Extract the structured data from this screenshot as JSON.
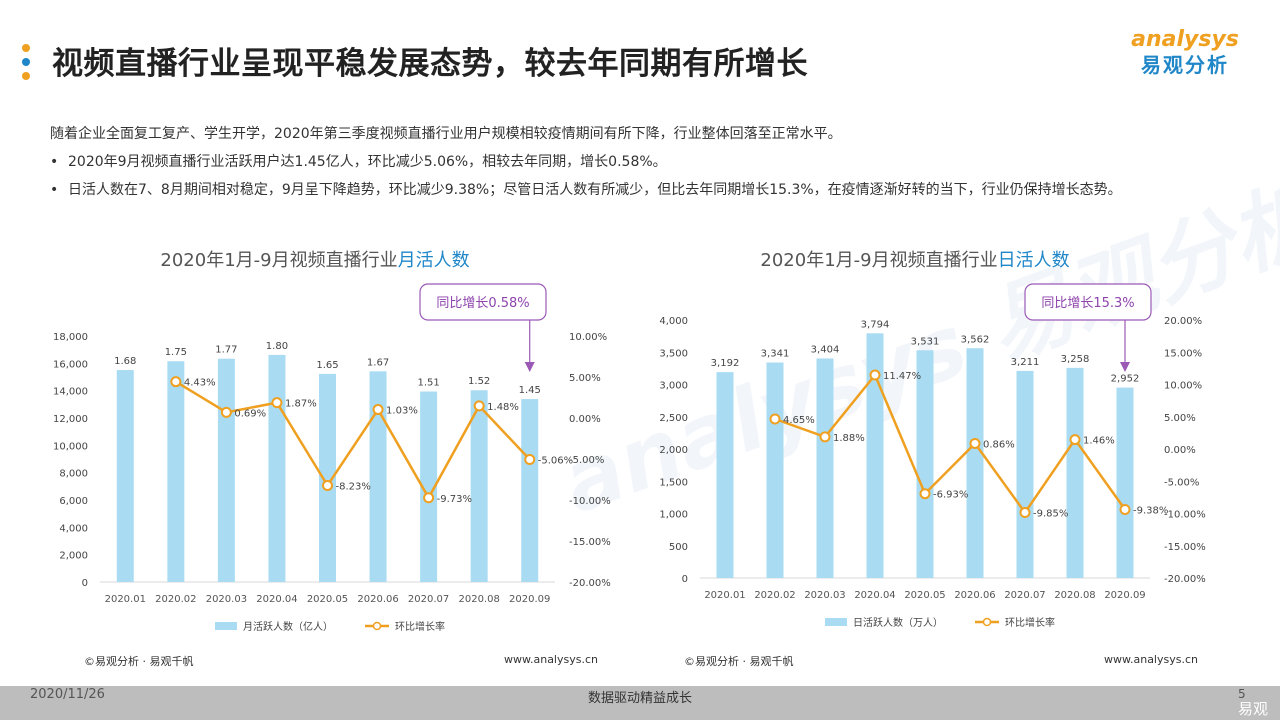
{
  "header": {
    "title": "视频直播行业呈现平稳发展态势，较去年同期有所增长",
    "logo_en": "analysys",
    "logo_cn": "易观分析",
    "dot_colors": [
      "#f0a020",
      "#1f86c8",
      "#f0a020"
    ]
  },
  "body": {
    "intro": "随着企业全面复工复产、学生开学，2020年第三季度视频直播行业用户规模相较疫情期间有所下降，行业整体回落至正常水平。",
    "bullet_symbol": "•",
    "bullets": [
      "2020年9月视频直播行业活跃用户达1.45亿人，环比减少5.06%，相较去年同期，增长0.58%。",
      "日活人数在7、8月期间相对稳定，9月呈下降趋势，环比减少9.38%；尽管日活人数有所减少，但比去年同期增长15.3%，在疫情逐渐好转的当下，行业仍保持增长态势。"
    ]
  },
  "watermark": "analysys 易观分析",
  "chart_data": [
    {
      "type": "bar",
      "title_prefix": "2020年1月-9月视频直播行业",
      "title_highlight": "月活人数",
      "categories": [
        "2020.01",
        "2020.02",
        "2020.03",
        "2020.04",
        "2020.05",
        "2020.06",
        "2020.07",
        "2020.08",
        "2020.09"
      ],
      "series": [
        {
          "name": "月活跃人数（亿人）",
          "kind": "bar",
          "axis": "left",
          "values": [
            1.68,
            1.75,
            1.77,
            1.8,
            1.65,
            1.67,
            1.51,
            1.52,
            1.45
          ],
          "labels": [
            "1.68",
            "1.75",
            "1.77",
            "1.80",
            "1.65",
            "1.67",
            "1.51",
            "1.52",
            "1.45"
          ],
          "color": "#a9dcf3"
        },
        {
          "name": "环比增长率",
          "kind": "line",
          "axis": "right",
          "values": [
            null,
            4.43,
            0.69,
            1.87,
            -8.23,
            1.03,
            -9.73,
            1.48,
            -5.06
          ],
          "labels": [
            "",
            "4.43%",
            "0.69%",
            "1.87%",
            "-8.23%",
            "1.03%",
            "-9.73%",
            "1.48%",
            "-5.06%"
          ],
          "color": "#f0a020"
        }
      ],
      "left_axis": {
        "ticks": [
          "0",
          "2,000",
          "4,000",
          "6,000",
          "8,000",
          "10,000",
          "12,000",
          "14,000",
          "16,000",
          "18,000"
        ]
      },
      "right_axis": {
        "ticks": [
          "-20.00%",
          "-15.00%",
          "-10.00%",
          "-5.00%",
          "0.00%",
          "5.00%",
          "10.00%"
        ],
        "ylim": [
          -20,
          10
        ]
      },
      "callout": "同比增长0.58%",
      "source": "©易观分析 · 易观千帆",
      "site": "www.analysys.cn"
    },
    {
      "type": "bar",
      "title_prefix": "2020年1月-9月视频直播行业",
      "title_highlight": "日活人数",
      "categories": [
        "2020.01",
        "2020.02",
        "2020.03",
        "2020.04",
        "2020.05",
        "2020.06",
        "2020.07",
        "2020.08",
        "2020.09"
      ],
      "series": [
        {
          "name": "日活跃人数（万人）",
          "kind": "bar",
          "axis": "left",
          "values": [
            3192,
            3341,
            3404,
            3794,
            3531,
            3562,
            3211,
            3258,
            2952
          ],
          "labels": [
            "3,192",
            "3,341",
            "3,404",
            "3,794",
            "3,531",
            "3,562",
            "3,211",
            "3,258",
            "2,952"
          ],
          "color": "#a9dcf3"
        },
        {
          "name": "环比增长率",
          "kind": "line",
          "axis": "right",
          "values": [
            null,
            4.65,
            1.88,
            11.47,
            -6.93,
            0.86,
            -9.85,
            1.46,
            -9.38
          ],
          "labels": [
            "",
            "4.65%",
            "1.88%",
            "11.47%",
            "-6.93%",
            "0.86%",
            "-9.85%",
            "1.46%",
            "-9.38%"
          ],
          "color": "#f0a020"
        }
      ],
      "left_axis": {
        "ticks": [
          "0",
          "500",
          "1,000",
          "1,500",
          "2,000",
          "2,500",
          "3,000",
          "3,500",
          "4,000"
        ],
        "ylim": [
          0,
          4000
        ]
      },
      "right_axis": {
        "ticks": [
          "-20.00%",
          "-15.00%",
          "-10.00%",
          "-5.00%",
          "0.00%",
          "5.00%",
          "10.00%",
          "15.00%",
          "20.00%"
        ],
        "ylim": [
          -20,
          20
        ]
      },
      "callout": "同比增长15.3%",
      "source": "©易观分析 · 易观千帆",
      "site": "www.analysys.cn"
    }
  ],
  "footer": {
    "date": "2020/11/26",
    "slogan": "数据驱动精益成长",
    "page": "5",
    "brand": "易观"
  }
}
